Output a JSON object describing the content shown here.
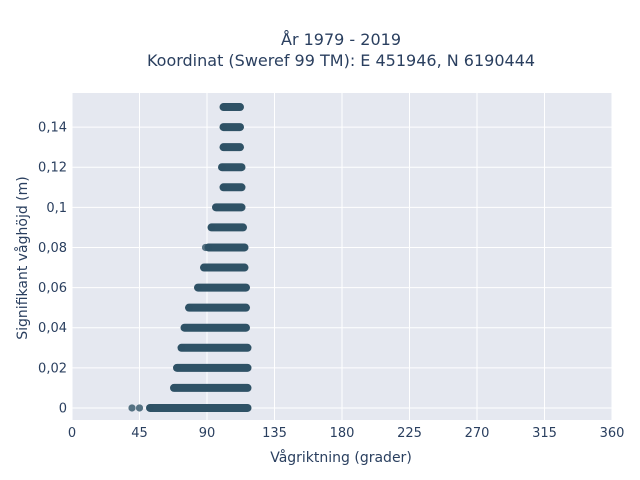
{
  "chart_data": {
    "type": "scatter",
    "title_line1": "År 1979 - 2019",
    "title_line2": "Koordinat (Sweref 99 TM): E 451946, N 6190444",
    "xlabel": "Vågriktning (grader)",
    "ylabel": "Signifikant våghöjd (m)",
    "xlim": [
      0,
      360
    ],
    "ylim": [
      -0.006,
      0.157
    ],
    "x_ticks": [
      0,
      45,
      90,
      135,
      180,
      225,
      270,
      315,
      360
    ],
    "x_tick_labels": [
      "0",
      "45",
      "90",
      "135",
      "180",
      "225",
      "270",
      "315",
      "360"
    ],
    "y_ticks": [
      0,
      0.02,
      0.04,
      0.06,
      0.08,
      0.1,
      0.12,
      0.14
    ],
    "y_tick_labels": [
      "0",
      "0,02",
      "0,04",
      "0,06",
      "0,08",
      "0,1",
      "0,12",
      "0,14"
    ],
    "grid": true,
    "marker_color": "#2f5266",
    "plot_bg": "#e5e8f0",
    "series": [
      {
        "points": [
          {
            "y": 0.0,
            "x_min": 52,
            "x_max": 117,
            "outliers": [
              40,
              45
            ]
          },
          {
            "y": 0.01,
            "x_min": 68,
            "x_max": 117,
            "outliers": []
          },
          {
            "y": 0.02,
            "x_min": 70,
            "x_max": 117,
            "outliers": []
          },
          {
            "y": 0.03,
            "x_min": 73,
            "x_max": 117,
            "outliers": []
          },
          {
            "y": 0.04,
            "x_min": 75,
            "x_max": 116,
            "outliers": []
          },
          {
            "y": 0.05,
            "x_min": 78,
            "x_max": 116,
            "outliers": []
          },
          {
            "y": 0.06,
            "x_min": 84,
            "x_max": 116,
            "outliers": []
          },
          {
            "y": 0.07,
            "x_min": 88,
            "x_max": 115,
            "outliers": []
          },
          {
            "y": 0.08,
            "x_min": 91,
            "x_max": 115,
            "outliers": [
              89
            ]
          },
          {
            "y": 0.09,
            "x_min": 93,
            "x_max": 114,
            "outliers": []
          },
          {
            "y": 0.1,
            "x_min": 96,
            "x_max": 113,
            "outliers": []
          },
          {
            "y": 0.11,
            "x_min": 101,
            "x_max": 113,
            "outliers": []
          },
          {
            "y": 0.12,
            "x_min": 100,
            "x_max": 113,
            "outliers": []
          },
          {
            "y": 0.13,
            "x_min": 101,
            "x_max": 112,
            "outliers": []
          },
          {
            "y": 0.14,
            "x_min": 101,
            "x_max": 112,
            "outliers": []
          },
          {
            "y": 0.15,
            "x_min": 101,
            "x_max": 112,
            "outliers": []
          }
        ]
      }
    ]
  }
}
